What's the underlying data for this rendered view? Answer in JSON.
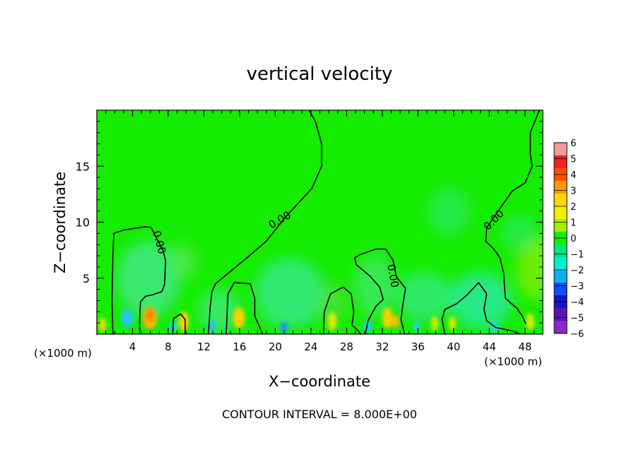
{
  "chart_data": {
    "type": "heatmap",
    "title": "vertical velocity",
    "xlabel": "X−coordinate",
    "ylabel": "Z−coordinate",
    "x_unit_label": "(×1000 m)",
    "y_unit_label": "(×1000 m)",
    "xlim": [
      0,
      50
    ],
    "ylim": [
      0,
      20
    ],
    "x_ticks": [
      4,
      8,
      12,
      16,
      20,
      24,
      28,
      32,
      36,
      40,
      44,
      48
    ],
    "x_tick_labels": [
      "4",
      "8",
      "12",
      "16",
      "20",
      "24",
      "28",
      "32",
      "36",
      "40",
      "44",
      "48"
    ],
    "y_ticks": [
      5,
      10,
      15
    ],
    "y_tick_labels": [
      "5",
      "10",
      "15"
    ],
    "footer": "CONTOUR INTERVAL = 8.000E+00",
    "contour_labels": [
      {
        "text": "0.00",
        "x": 7.0,
        "z": 8.2
      },
      {
        "text": "0.00",
        "x": 20.5,
        "z": 10.2
      },
      {
        "text": "0.00",
        "x": 33.2,
        "z": 5.2
      },
      {
        "text": "0.00",
        "x": 44.5,
        "z": 10.2
      }
    ],
    "zero_contours": [
      [
        [
          1.8,
          0
        ],
        [
          1.7,
          3
        ],
        [
          1.8,
          7
        ],
        [
          1.9,
          9
        ],
        [
          3,
          9.3
        ],
        [
          5.5,
          9.6
        ],
        [
          6.1,
          9.5
        ],
        [
          7.4,
          7.5
        ],
        [
          7.7,
          6.6
        ],
        [
          7.6,
          4.5
        ],
        [
          7.3,
          3.8
        ],
        [
          6.2,
          3.5
        ],
        [
          5.5,
          3.4
        ],
        [
          4.9,
          2.9
        ],
        [
          4.8,
          1.5
        ],
        [
          4.8,
          0
        ]
      ],
      [
        [
          8.5,
          0
        ],
        [
          8.6,
          1.4
        ],
        [
          9.4,
          1.8
        ],
        [
          9.9,
          1.3
        ],
        [
          9.9,
          0
        ]
      ],
      [
        [
          12.5,
          0
        ],
        [
          12.7,
          2.4
        ],
        [
          12.9,
          3.8
        ],
        [
          13.3,
          4.5
        ],
        [
          16.8,
          6.8
        ],
        [
          19,
          8.3
        ],
        [
          21.2,
          10.5
        ],
        [
          24.1,
          13
        ],
        [
          25.2,
          15
        ],
        [
          25.2,
          17
        ],
        [
          24.5,
          19
        ],
        [
          23.8,
          20
        ]
      ],
      [
        [
          14.5,
          0
        ],
        [
          14.7,
          3.6
        ],
        [
          15.4,
          4.6
        ],
        [
          17.2,
          4.5
        ],
        [
          17.7,
          3.2
        ],
        [
          17.7,
          1.6
        ],
        [
          18.1,
          0.9
        ],
        [
          18.6,
          0
        ]
      ],
      [
        [
          25.4,
          0
        ],
        [
          25.5,
          2
        ],
        [
          26.2,
          3.6
        ],
        [
          27.6,
          4.2
        ],
        [
          28.5,
          3.6
        ],
        [
          28.8,
          2
        ],
        [
          28.6,
          0.8
        ],
        [
          29.3,
          0.3
        ],
        [
          29.6,
          0
        ]
      ],
      [
        [
          30.1,
          0
        ],
        [
          30.4,
          1.2
        ],
        [
          31.3,
          2.5
        ],
        [
          32.1,
          3.1
        ],
        [
          31.7,
          4.2
        ],
        [
          30.6,
          5.2
        ],
        [
          29.1,
          6.2
        ],
        [
          28.9,
          6.8
        ],
        [
          29.5,
          7.1
        ],
        [
          31.3,
          7.6
        ],
        [
          32.4,
          7.6
        ],
        [
          33.2,
          6.6
        ],
        [
          33.6,
          5.1
        ],
        [
          34.6,
          4.1
        ],
        [
          34.3,
          2.6
        ],
        [
          34.1,
          1.3
        ],
        [
          34.5,
          0
        ]
      ],
      [
        [
          39.0,
          0
        ],
        [
          38.7,
          1.3
        ],
        [
          39.0,
          2.2
        ],
        [
          40.3,
          2.7
        ],
        [
          41.5,
          3.5
        ],
        [
          42.8,
          4.6
        ],
        [
          43.7,
          3.6
        ],
        [
          43.4,
          2.2
        ],
        [
          43.7,
          1.2
        ],
        [
          44.7,
          0.6
        ],
        [
          46.5,
          0.3
        ],
        [
          47.5,
          0
        ]
      ],
      [
        [
          49.6,
          20
        ],
        [
          48.6,
          18
        ],
        [
          48.6,
          16
        ],
        [
          48.8,
          15
        ],
        [
          48.0,
          13.5
        ],
        [
          46.6,
          12.8
        ],
        [
          45.6,
          11.7
        ],
        [
          43.7,
          9.5
        ],
        [
          43.6,
          8.3
        ],
        [
          44.5,
          7.6
        ],
        [
          45.2,
          6.8
        ],
        [
          45.6,
          5.4
        ],
        [
          45.8,
          3.2
        ],
        [
          47.1,
          2.3
        ],
        [
          47.7,
          1.6
        ],
        [
          48.1,
          0.9
        ]
      ]
    ],
    "colorbar": {
      "tick_labels": [
        "6",
        "5",
        "4",
        "3",
        "2",
        "1",
        "0",
        "−1",
        "−2",
        "−3",
        "−4",
        "−5",
        "−6"
      ],
      "colors": [
        "#f59a9a",
        "#f52020",
        "#ff5000",
        "#ff9a00",
        "#ffd800",
        "#f0f000",
        "#a8f000",
        "#18ec00",
        "#00e87a",
        "#00f0d4",
        "#10b0f0",
        "#1050f8",
        "#1414c8",
        "#5a14b4",
        "#8c28c8"
      ]
    }
  }
}
